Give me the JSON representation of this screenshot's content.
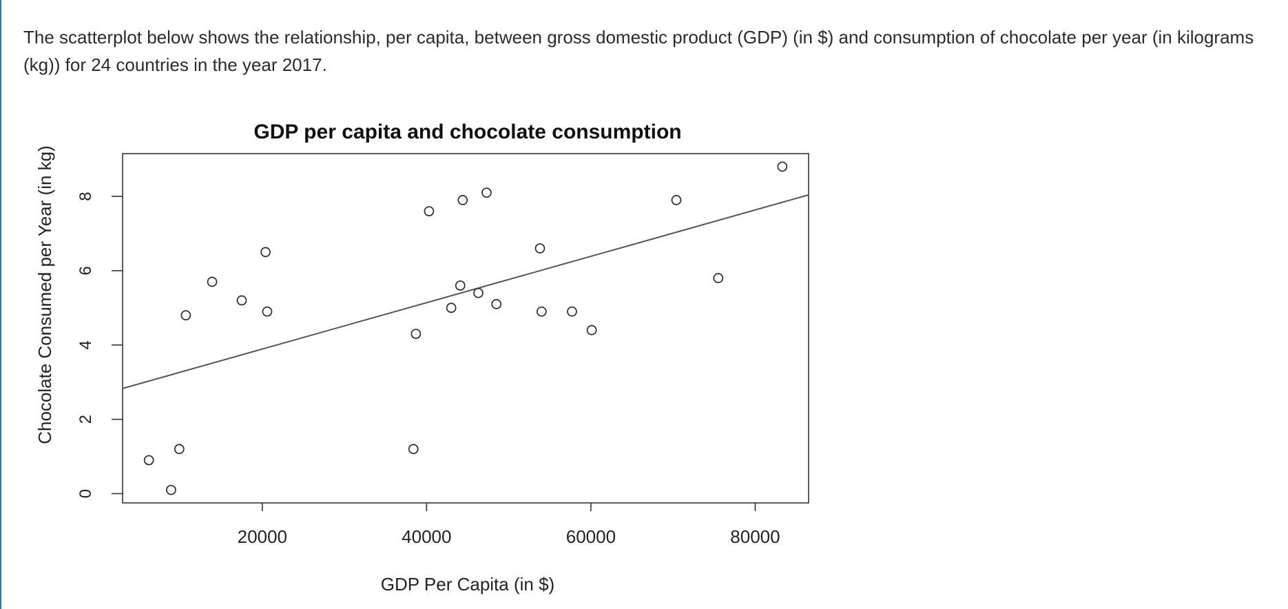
{
  "intro_text": "The scatterplot below shows the relationship, per capita, between gross domestic product (GDP) (in $) and consumption of chocolate per year (in kilograms (kg)) for 24 countries in the year 2017.",
  "chart_data": {
    "type": "scatter",
    "title": "GDP per capita and chocolate consumption",
    "xlabel": "GDP Per Capita (in $)",
    "ylabel": "Chocolate Consumed per Year (in kg)",
    "xlim": [
      3000,
      86500
    ],
    "ylim": [
      -0.25,
      9.15
    ],
    "xticks": [
      20000,
      40000,
      60000,
      80000
    ],
    "xtick_labels": [
      "20000",
      "40000",
      "60000",
      "80000"
    ],
    "yticks": [
      0,
      2,
      4,
      6,
      8
    ],
    "ytick_labels": [
      "0",
      "2",
      "4",
      "6",
      "8"
    ],
    "grid": false,
    "legend": "none",
    "point_style": "open-circle",
    "colors": {
      "axis": "#333333",
      "points": "#333333",
      "trend": "#555555",
      "title": "#111111"
    },
    "points": [
      {
        "x": 6200,
        "y": 0.9
      },
      {
        "x": 8900,
        "y": 0.1
      },
      {
        "x": 9900,
        "y": 1.2
      },
      {
        "x": 10700,
        "y": 4.8
      },
      {
        "x": 13900,
        "y": 5.7
      },
      {
        "x": 17500,
        "y": 5.2
      },
      {
        "x": 20400,
        "y": 6.5
      },
      {
        "x": 20600,
        "y": 4.9
      },
      {
        "x": 38400,
        "y": 1.2
      },
      {
        "x": 38700,
        "y": 4.3
      },
      {
        "x": 40300,
        "y": 7.6
      },
      {
        "x": 43000,
        "y": 5.0
      },
      {
        "x": 44100,
        "y": 5.6
      },
      {
        "x": 44400,
        "y": 7.9
      },
      {
        "x": 46300,
        "y": 5.4
      },
      {
        "x": 47300,
        "y": 8.1
      },
      {
        "x": 48500,
        "y": 5.1
      },
      {
        "x": 53800,
        "y": 6.6
      },
      {
        "x": 54000,
        "y": 4.9
      },
      {
        "x": 57700,
        "y": 4.9
      },
      {
        "x": 60100,
        "y": 4.4
      },
      {
        "x": 70400,
        "y": 7.9
      },
      {
        "x": 75500,
        "y": 5.8
      },
      {
        "x": 83300,
        "y": 8.8
      }
    ],
    "trend_line": {
      "x": [
        3000,
        86500
      ],
      "y": [
        2.83,
        8.04
      ]
    }
  }
}
